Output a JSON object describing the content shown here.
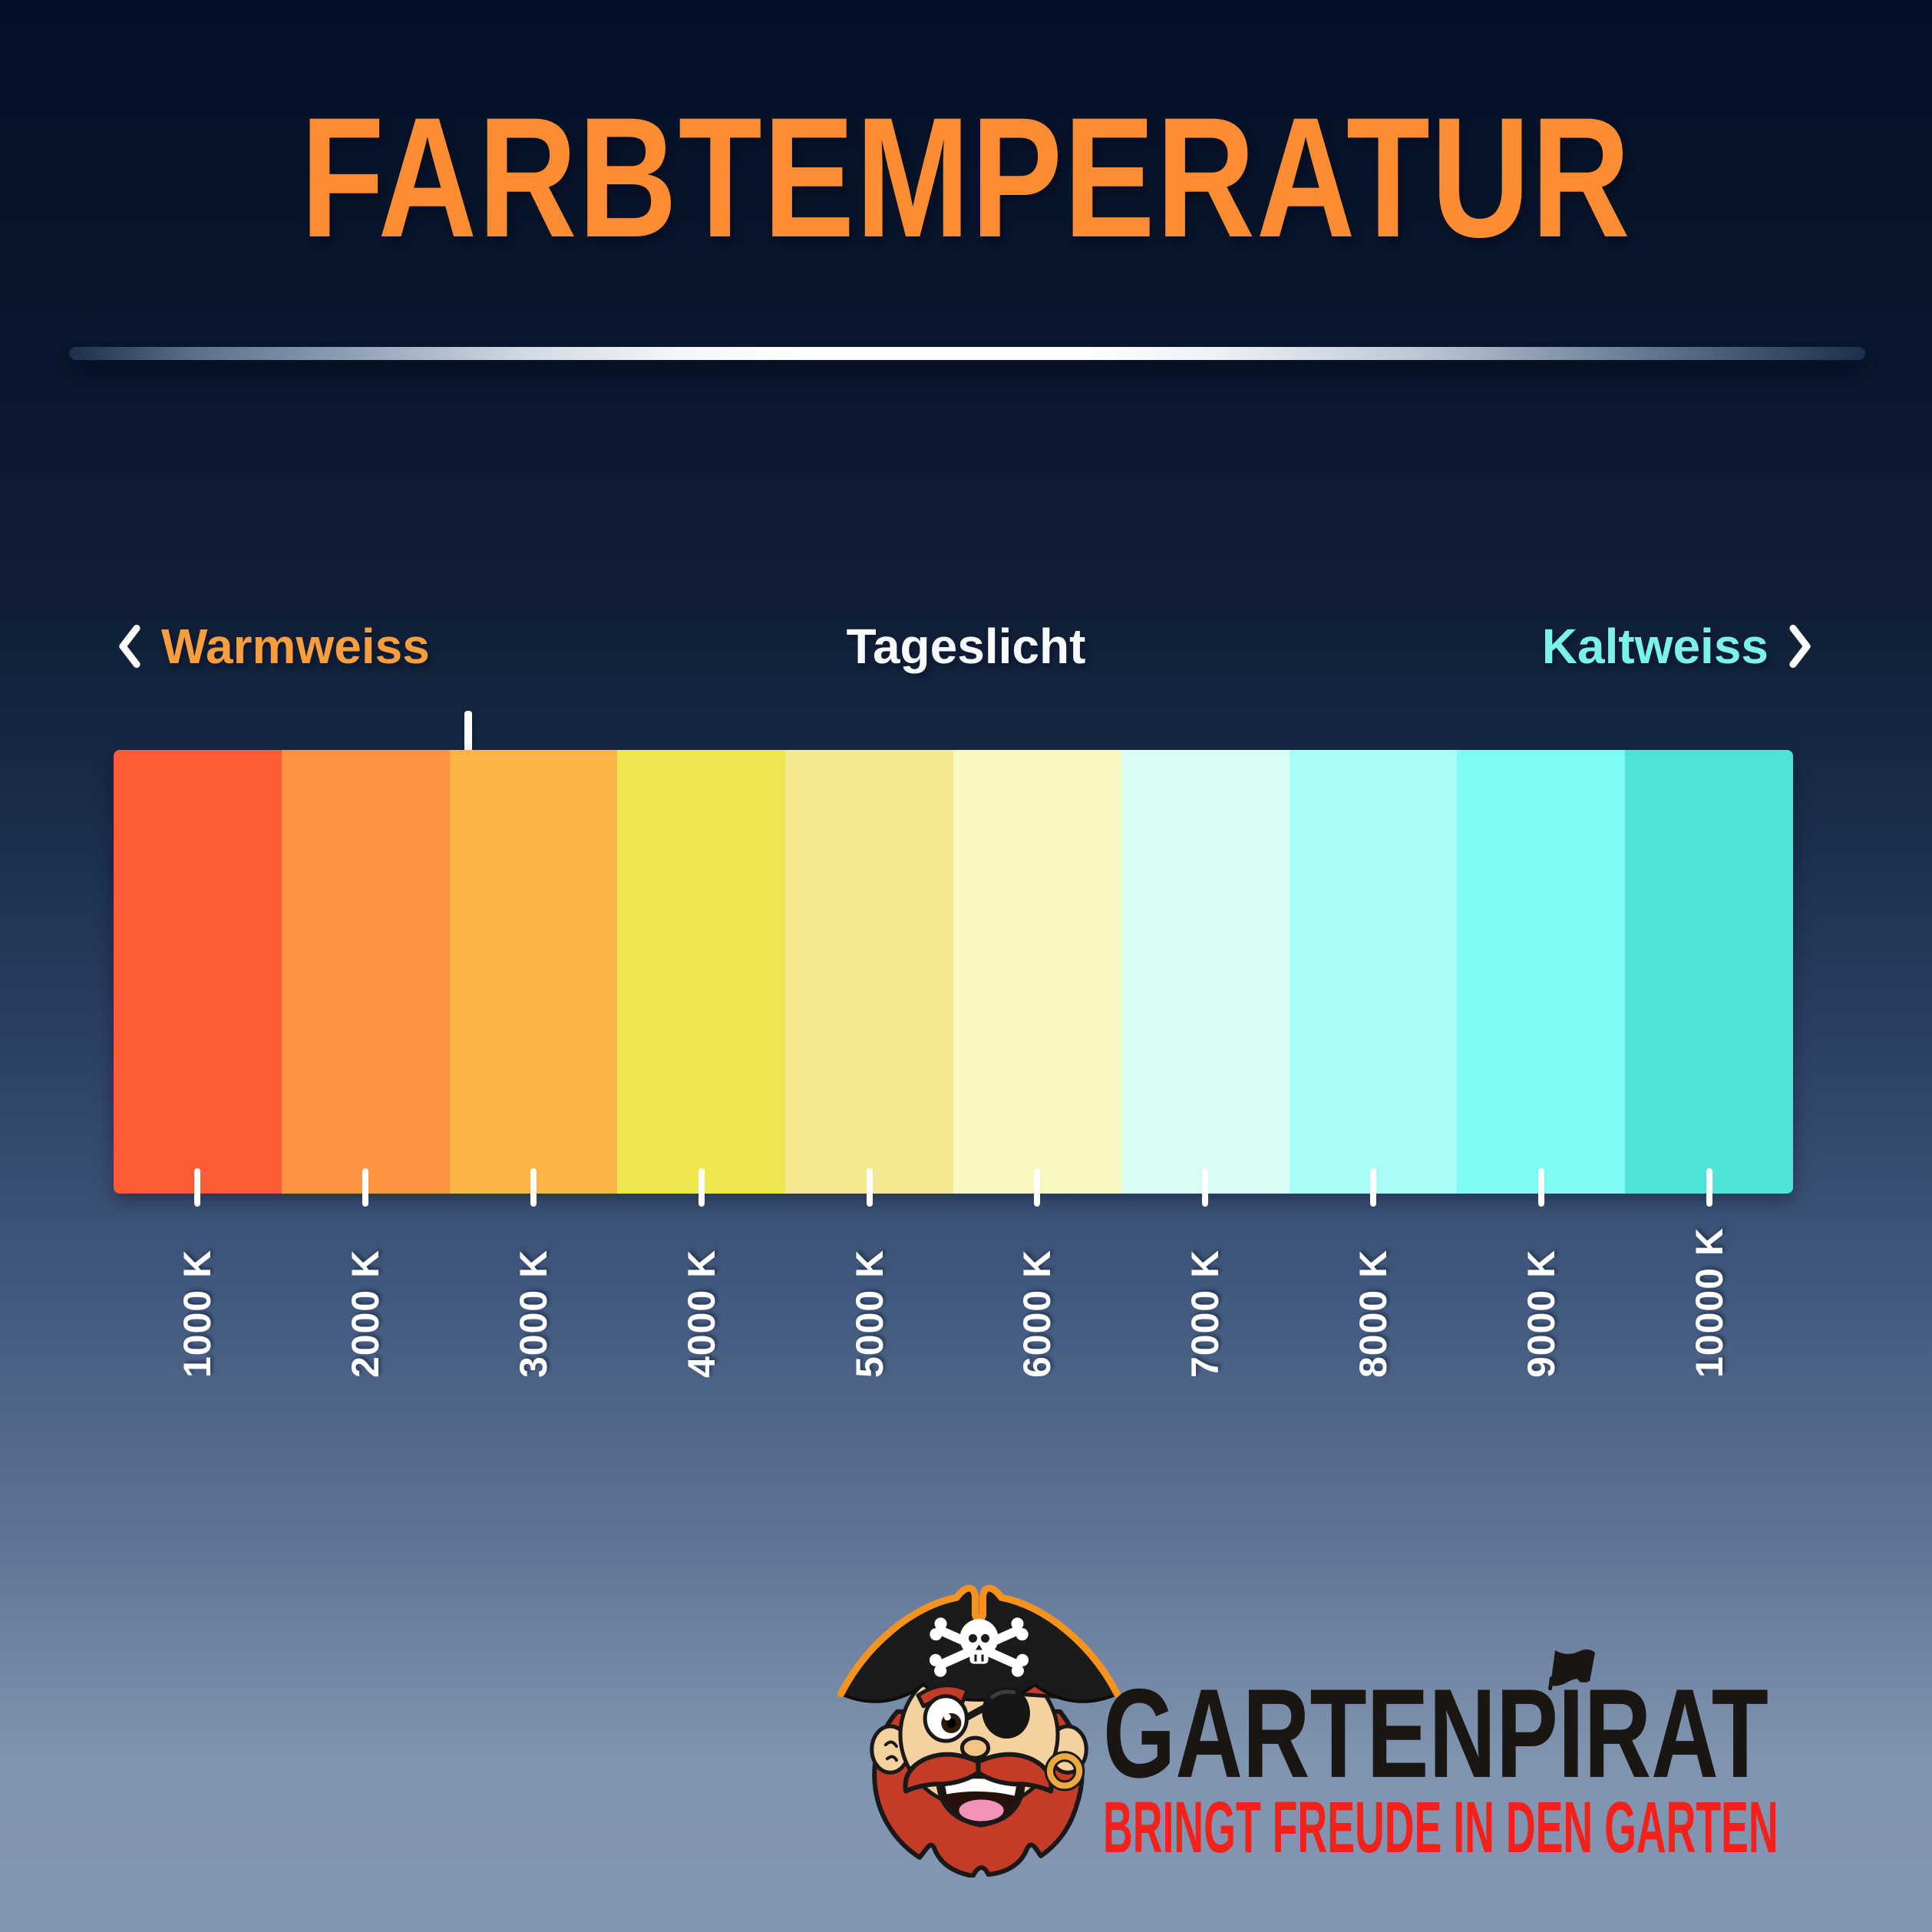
{
  "page": {
    "title": "FARBTEMPERATUR",
    "title_color": "#fd8c33"
  },
  "zones": {
    "warm": {
      "label": "Warmweiss",
      "color": "#f99e3e"
    },
    "day": {
      "label": "Tageslicht",
      "color": "#f7f9fc"
    },
    "cold": {
      "label": "Kaltweiss",
      "color": "#7bf2e9"
    }
  },
  "chart_data": {
    "type": "heatmap",
    "subtype": "color-temperature-scale",
    "orientation": "horizontal",
    "title": "FARBTEMPERATUR",
    "categories": [
      "1000 K",
      "2000 K",
      "3000 K",
      "4000 K",
      "5000 K",
      "6000 K",
      "7000 K",
      "8000 K",
      "9000 K",
      "10000 K"
    ],
    "values_kelvin": [
      1000,
      2000,
      3000,
      4000,
      5000,
      6000,
      7000,
      8000,
      9000,
      10000
    ],
    "segment_colors": [
      "#fc5d35",
      "#fd9340",
      "#fbb643",
      "#efe54e",
      "#f3e98e",
      "#f8f7c2",
      "#d9fcf4",
      "#a8fdf4",
      "#7ffbf6",
      "#4de3d9"
    ],
    "axis": {
      "unit": "K",
      "min": 1000,
      "max": 10000,
      "step": 1000,
      "tick_color": "#ffffff"
    },
    "zone_annotations": [
      {
        "label": "Warmweiss",
        "position": "left",
        "color": "#f99e3e"
      },
      {
        "label": "Tageslicht",
        "position": "center",
        "color": "#f7f9fc"
      },
      {
        "label": "Kaltweiss",
        "position": "right",
        "color": "#7bf2e9"
      }
    ],
    "marker_arrow": {
      "kelvin_approx": 2600,
      "color": "#ffffff"
    },
    "legend": false,
    "grid": false
  },
  "footer": {
    "brand": "GARTENPIRAT",
    "brand_display": "GARTENPÎRAT",
    "brand_color": "#1a1713",
    "tagline": "BRINGT FREUDE IN DEN GARTEN",
    "tagline_color": "#f32119"
  }
}
